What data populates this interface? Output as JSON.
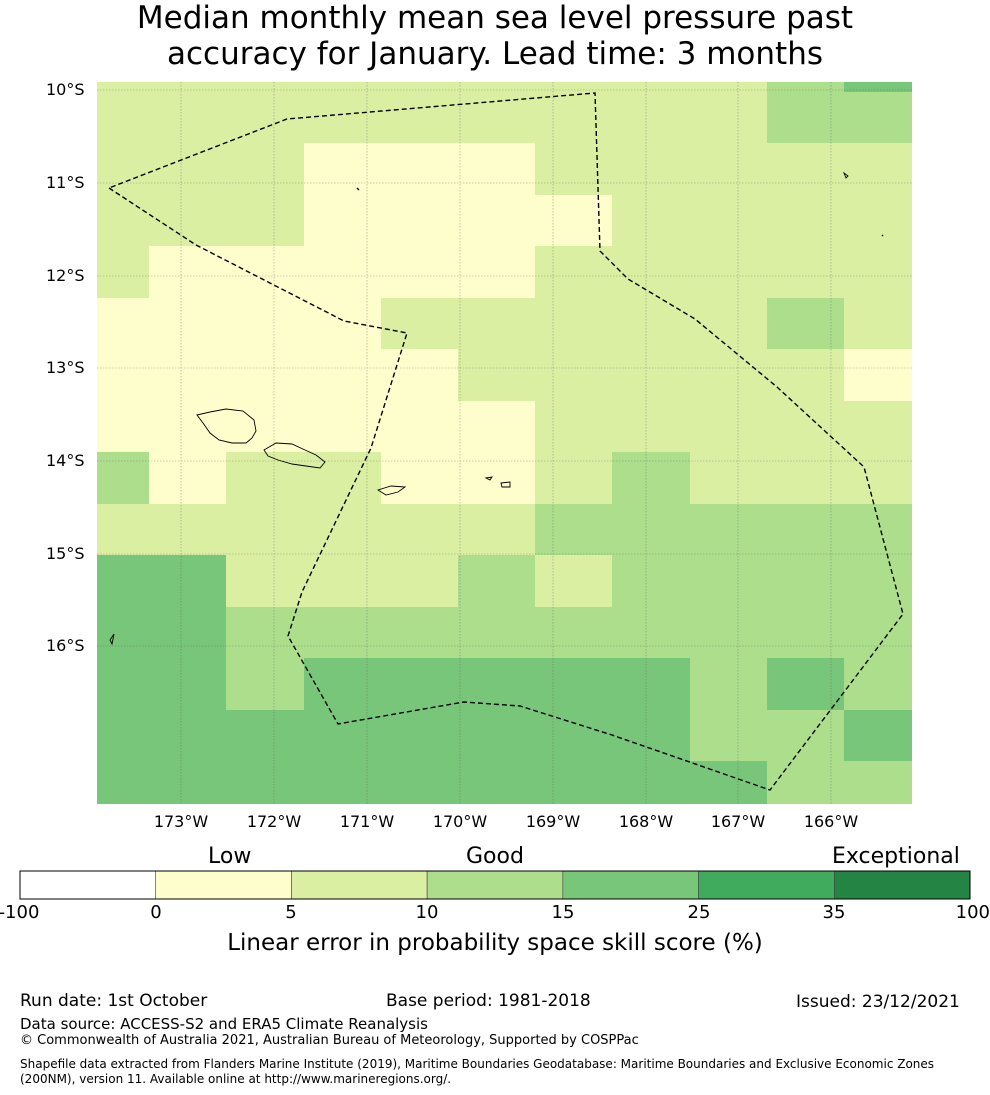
{
  "title": {
    "line1": "Median monthly mean sea level pressure past",
    "line2": "accuracy for January. Lead time: 3 months"
  },
  "map": {
    "lat_labels": [
      "10°S",
      "11°S",
      "12°S",
      "13°S",
      "14°S",
      "15°S",
      "16°S"
    ],
    "lon_labels": [
      "173°W",
      "172°W",
      "171°W",
      "170°W",
      "169°W",
      "168°W",
      "167°W",
      "166°W"
    ],
    "colors": {
      "c0": "#ffffff",
      "c1": "#fefecd",
      "c2": "#dbefa3",
      "c3": "#acde8c",
      "c4": "#78c679",
      "c5": "#41ab5d",
      "c6": "#238443"
    },
    "grid_rows": [
      [
        "c2",
        "c2",
        "c2",
        "c2",
        "c2",
        "c2",
        "c2",
        "c2",
        "c2",
        "c3",
        "c4"
      ],
      [
        "c2",
        "c2",
        "c2",
        "c2",
        "c2",
        "c2",
        "c2",
        "c2",
        "c2",
        "c3",
        "c3"
      ],
      [
        "c2",
        "c2",
        "c2",
        "c1",
        "c1",
        "c1",
        "c2",
        "c2",
        "c2",
        "c2",
        "c2"
      ],
      [
        "c2",
        "c2",
        "c2",
        "c1",
        "c1",
        "c1",
        "c1",
        "c2",
        "c2",
        "c2",
        "c2"
      ],
      [
        "c2",
        "c1",
        "c1",
        "c1",
        "c1",
        "c1",
        "c2",
        "c2",
        "c2",
        "c2",
        "c2"
      ],
      [
        "c1",
        "c1",
        "c1",
        "c1",
        "c2",
        "c2",
        "c2",
        "c2",
        "c2",
        "c3",
        "c2"
      ],
      [
        "c1",
        "c1",
        "c1",
        "c1",
        "c1",
        "c2",
        "c2",
        "c2",
        "c2",
        "c2",
        "c1"
      ],
      [
        "c1",
        "c1",
        "c1",
        "c1",
        "c1",
        "c1",
        "c2",
        "c2",
        "c2",
        "c2",
        "c2"
      ],
      [
        "c3",
        "c1",
        "c2",
        "c2",
        "c1",
        "c1",
        "c2",
        "c3",
        "c2",
        "c2",
        "c2"
      ],
      [
        "c2",
        "c2",
        "c2",
        "c2",
        "c2",
        "c2",
        "c3",
        "c3",
        "c3",
        "c3",
        "c3"
      ],
      [
        "c4",
        "c4",
        "c2",
        "c2",
        "c2",
        "c3",
        "c2",
        "c3",
        "c3",
        "c3",
        "c3"
      ],
      [
        "c4",
        "c4",
        "c3",
        "c3",
        "c3",
        "c3",
        "c3",
        "c3",
        "c3",
        "c3",
        "c3"
      ],
      [
        "c4",
        "c4",
        "c3",
        "c4",
        "c4",
        "c4",
        "c4",
        "c4",
        "c3",
        "c4",
        "c3"
      ],
      [
        "c4",
        "c4",
        "c4",
        "c4",
        "c4",
        "c4",
        "c4",
        "c4",
        "c3",
        "c3",
        "c4"
      ],
      [
        "c4",
        "c4",
        "c4",
        "c4",
        "c4",
        "c4",
        "c4",
        "c4",
        "c4",
        "c3",
        "c3"
      ]
    ]
  },
  "colorbar": {
    "words": [
      "Low",
      "Good",
      "Exceptional"
    ],
    "ticks": [
      "-100",
      "0",
      "5",
      "10",
      "15",
      "25",
      "35",
      "100"
    ],
    "segments": [
      "c0",
      "c1",
      "c2",
      "c3",
      "c4",
      "c5",
      "c6"
    ],
    "axis_label": "Linear error in probability space skill score (%)"
  },
  "footer": {
    "run_date": "Run date: 1st October",
    "base_period": "Base period: 1981-2018",
    "issued": "Issued: 23/12/2021",
    "data_source": "Data source: ACCESS-S2 and ERA5 Climate Reanalysis",
    "copyright": "© Commonwealth of Australia 2021, Australian Bureau of Meteorology, Supported by COSPPac",
    "shapefile_line1": "Shapefile data extracted from Flanders Marine Institute (2019), Maritime Boundaries Geodatabase: Maritime Boundaries and Exclusive Economic Zones",
    "shapefile_line2": "(200NM), version 11. Available online at http://www.marineregions.org/."
  }
}
